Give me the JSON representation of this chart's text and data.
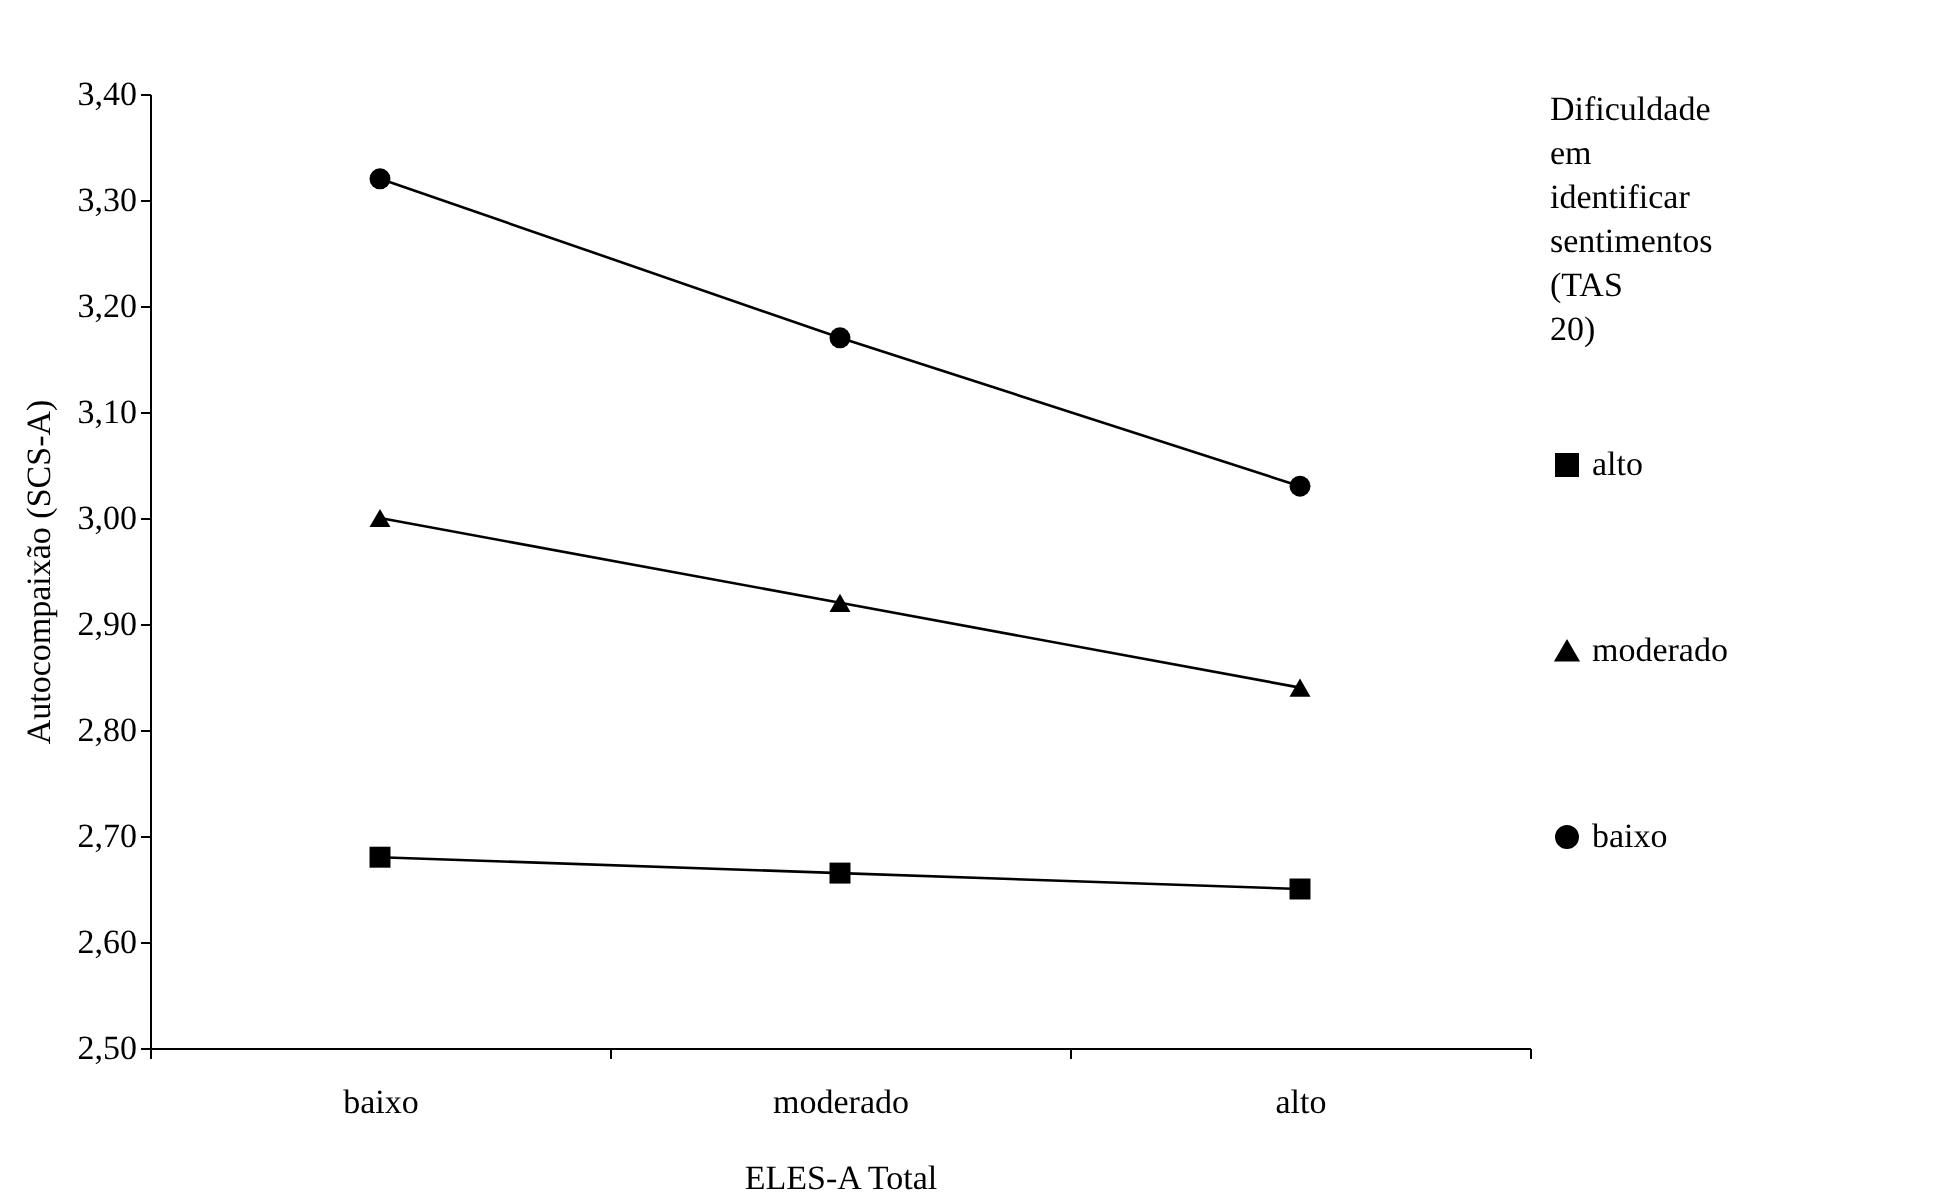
{
  "chart_data": {
    "type": "line",
    "xlabel": "ELES-A Total",
    "ylabel": "Autocompaixão (SCS-A)",
    "legend_title": "Dificuldade em identificar sentimentos (TAS 20)",
    "legend": "right",
    "grid": false,
    "line_style": "solid",
    "categories": [
      "baixo",
      "moderado",
      "alto"
    ],
    "ylim": [
      2.5,
      3.4
    ],
    "yticks": [
      {
        "value": 2.5,
        "label": "2,50"
      },
      {
        "value": 2.6,
        "label": "2,60"
      },
      {
        "value": 2.7,
        "label": "2,70"
      },
      {
        "value": 2.8,
        "label": "2,80"
      },
      {
        "value": 2.9,
        "label": "2,90"
      },
      {
        "value": 3.0,
        "label": "3,00"
      },
      {
        "value": 3.1,
        "label": "3,10"
      },
      {
        "value": 3.2,
        "label": "3,20"
      },
      {
        "value": 3.3,
        "label": "3,30"
      },
      {
        "value": 3.4,
        "label": "3,40"
      }
    ],
    "series": [
      {
        "name": "alto",
        "color": "#000000",
        "marker": "square",
        "values": [
          2.68,
          2.665,
          2.65
        ]
      },
      {
        "name": "moderado",
        "color": "#000000",
        "marker": "triangle",
        "values": [
          3.0,
          2.92,
          2.84
        ]
      },
      {
        "name": "baixo",
        "color": "#000000",
        "marker": "circle",
        "values": [
          3.32,
          3.17,
          3.03
        ]
      }
    ]
  }
}
